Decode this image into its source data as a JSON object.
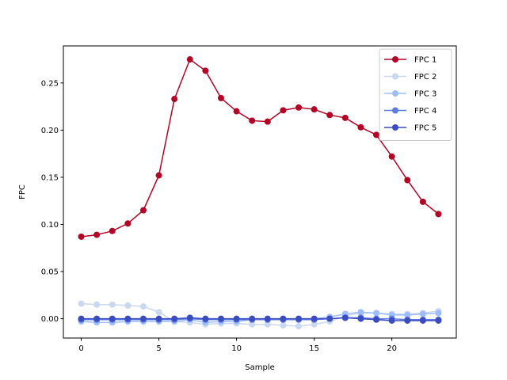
{
  "chart_data": {
    "type": "line",
    "title": "",
    "xlabel": "Sample",
    "ylabel": "FPC",
    "xlim": [
      -1.15,
      24.15
    ],
    "ylim": [
      -0.0205,
      0.2893
    ],
    "xticks": [
      0,
      5,
      10,
      15,
      20
    ],
    "yticks": [
      0.0,
      0.05,
      0.1,
      0.15,
      0.2,
      0.25
    ],
    "ytick_labels": [
      "0.00",
      "0.05",
      "0.10",
      "0.15",
      "0.20",
      "0.25"
    ],
    "grid": false,
    "legend": "top-right",
    "x": [
      0,
      1,
      2,
      3,
      4,
      5,
      6,
      7,
      8,
      9,
      10,
      11,
      12,
      13,
      14,
      15,
      16,
      17,
      18,
      19,
      20,
      21,
      22,
      23
    ],
    "series": [
      {
        "name": "FPC 1",
        "color": "#b40426",
        "values": [
          0.087,
          0.089,
          0.093,
          0.101,
          0.115,
          0.152,
          0.233,
          0.275,
          0.263,
          0.234,
          0.22,
          0.21,
          0.209,
          0.221,
          0.224,
          0.222,
          0.216,
          0.213,
          0.203,
          0.195,
          0.172,
          0.147,
          0.124,
          0.111
        ]
      },
      {
        "name": "FPC 2",
        "color": "#c9d7f0",
        "values": [
          0.016,
          0.015,
          0.015,
          0.014,
          0.013,
          0.007,
          -0.003,
          -0.004,
          -0.006,
          -0.005,
          -0.005,
          -0.006,
          -0.006,
          -0.007,
          -0.008,
          -0.006,
          -0.003,
          0.003,
          0.006,
          0.006,
          0.005,
          0.005,
          0.006,
          0.008
        ]
      },
      {
        "name": "FPC 3",
        "color": "#9dbdff",
        "values": [
          -0.003,
          -0.004,
          -0.004,
          -0.003,
          -0.003,
          -0.003,
          -0.003,
          -0.001,
          -0.004,
          -0.003,
          -0.003,
          -0.001,
          -0.001,
          -0.001,
          0.0,
          0.0,
          0.002,
          0.005,
          0.007,
          0.006,
          0.004,
          0.004,
          0.005,
          0.006
        ]
      },
      {
        "name": "FPC 4",
        "color": "#5b7ce6",
        "values": [
          -0.001,
          -0.001,
          -0.001,
          -0.001,
          -0.001,
          -0.001,
          -0.001,
          0.0,
          -0.001,
          -0.001,
          -0.001,
          -0.001,
          -0.001,
          -0.001,
          -0.001,
          -0.001,
          0.0,
          0.001,
          0.001,
          0.0,
          0.0,
          -0.001,
          -0.001,
          -0.001
        ]
      },
      {
        "name": "FPC 5",
        "color": "#3b4cc0",
        "values": [
          0.0,
          0.0,
          0.0,
          0.0,
          0.0,
          0.0,
          0.0,
          0.001,
          0.0,
          0.0,
          0.0,
          0.0,
          0.0,
          0.0,
          0.0,
          0.0,
          0.0,
          0.001,
          0.0,
          -0.001,
          -0.002,
          -0.002,
          -0.002,
          -0.002
        ]
      }
    ]
  }
}
